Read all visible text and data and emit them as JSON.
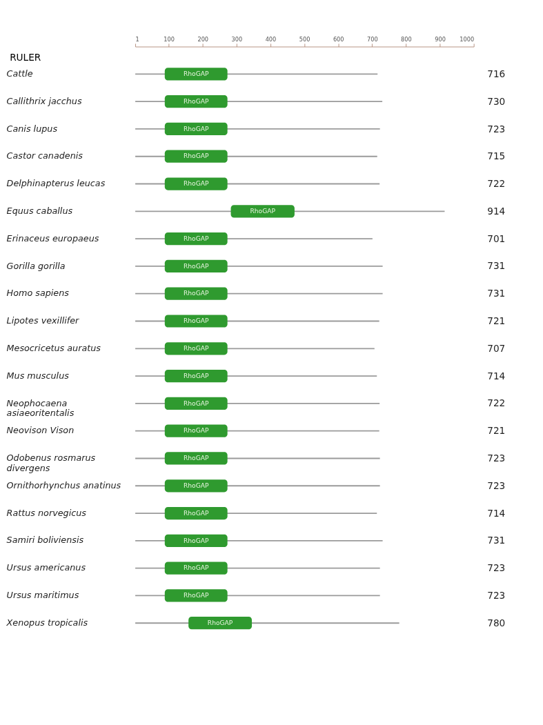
{
  "chart_data": {
    "type": "bar",
    "orientation": "horizontal",
    "xlabel": "RULER",
    "xlim": [
      1,
      1000
    ],
    "xticks": [
      1,
      100,
      200,
      300,
      400,
      500,
      600,
      700,
      800,
      900,
      1000
    ],
    "grid": false,
    "categories": [
      "Cattle",
      "Callithrix jacchus",
      "Canis lupus",
      "Castor canadenis",
      "Delphinapterus leucas",
      "Equus caballus",
      "Erinaceus europaeus",
      "Gorilla gorilla",
      "Homo sapiens",
      "Lipotes vexillifer",
      "Mesocricetus auratus",
      "Mus musculus",
      "Neophocaena asiaeoritentalis",
      "Neovison Vison",
      "Odobenus rosmarus divergens",
      "Ornithorhynchus anatinus",
      "Rattus norvegicus",
      "Samiri boliviensis",
      "Ursus americanus",
      "Ursus maritimus",
      "Xenopus tropicalis"
    ],
    "series": [
      {
        "color": "#9a9a9a",
        "values": [
          716,
          730,
          723,
          715,
          722,
          914,
          701,
          731,
          731,
          721,
          707,
          714,
          722,
          721,
          723,
          723,
          714,
          731,
          723,
          723,
          780
        ],
        "value_labels": [
          "716",
          "730",
          "723",
          "715",
          "722",
          "914",
          "701",
          "731",
          "731",
          "721",
          "707",
          "714",
          "722",
          "721",
          "723",
          "723",
          "714",
          "731",
          "723",
          "723",
          "780"
        ]
      },
      {
        "name": "RhoGAP",
        "color": "#2f9a2f",
        "base": [
          88,
          88,
          88,
          88,
          88,
          283,
          88,
          88,
          88,
          88,
          88,
          88,
          88,
          88,
          88,
          88,
          88,
          88,
          88,
          88,
          158
        ],
        "values": [
          185,
          185,
          185,
          185,
          185,
          188,
          185,
          185,
          185,
          185,
          185,
          185,
          185,
          185,
          185,
          185,
          185,
          185,
          185,
          185,
          187
        ]
      }
    ]
  }
}
